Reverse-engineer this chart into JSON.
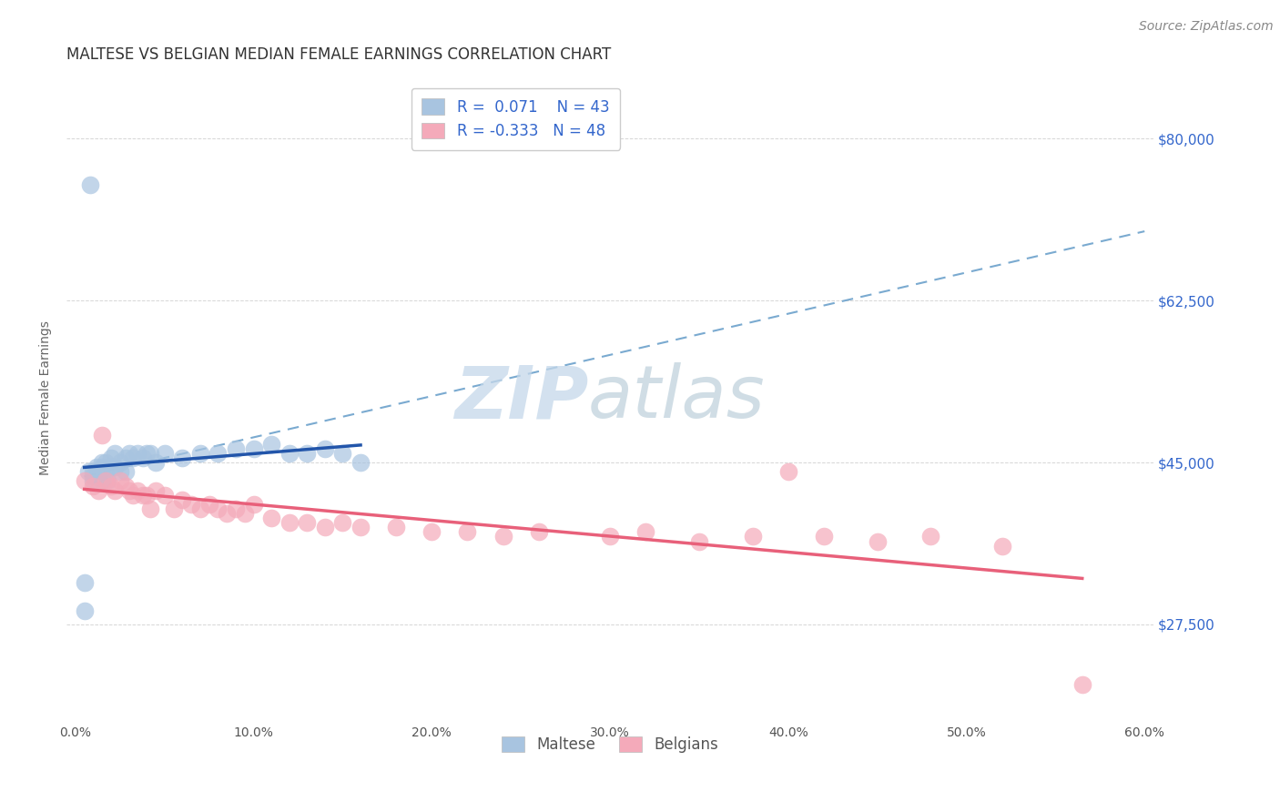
{
  "title": "MALTESE VS BELGIAN MEDIAN FEMALE EARNINGS CORRELATION CHART",
  "source": "Source: ZipAtlas.com",
  "ylabel": "Median Female Earnings",
  "xlim": [
    -0.005,
    0.605
  ],
  "ylim": [
    17000,
    87000
  ],
  "yticks": [
    27500,
    45000,
    62500,
    80000
  ],
  "ytick_labels": [
    "$27,500",
    "$45,000",
    "$62,500",
    "$80,000"
  ],
  "xticks": [
    0.0,
    0.1,
    0.2,
    0.3,
    0.4,
    0.5,
    0.6
  ],
  "xtick_labels": [
    "0.0%",
    "10.0%",
    "20.0%",
    "30.0%",
    "40.0%",
    "50.0%",
    "60.0%"
  ],
  "maltese_R": 0.071,
  "maltese_N": 43,
  "belgian_R": -0.333,
  "belgian_N": 48,
  "maltese_color": "#A8C4E0",
  "belgian_color": "#F4AABA",
  "maltese_trend_color": "#2255AA",
  "belgian_trend_color": "#E8607A",
  "dashed_line_color": "#7AAAD0",
  "background_color": "#FFFFFF",
  "grid_color": "#CCCCCC",
  "watermark_color": "#C8D8E8",
  "title_color": "#333333",
  "axis_label_color": "#666666",
  "tick_color": "#3366CC",
  "legend_text_color": "#3366CC",
  "maltese_x": [
    0.005,
    0.005,
    0.007,
    0.008,
    0.01,
    0.01,
    0.01,
    0.012,
    0.013,
    0.013,
    0.015,
    0.015,
    0.015,
    0.017,
    0.017,
    0.018,
    0.02,
    0.02,
    0.022,
    0.022,
    0.025,
    0.025,
    0.028,
    0.028,
    0.03,
    0.032,
    0.035,
    0.038,
    0.04,
    0.042,
    0.045,
    0.05,
    0.06,
    0.07,
    0.08,
    0.09,
    0.1,
    0.11,
    0.12,
    0.13,
    0.14,
    0.15,
    0.16
  ],
  "maltese_y": [
    29000,
    32000,
    44000,
    75000,
    44000,
    43500,
    43000,
    44500,
    44000,
    43500,
    45000,
    44500,
    43000,
    45000,
    44000,
    43000,
    45500,
    44500,
    46000,
    44500,
    45000,
    44000,
    45500,
    44000,
    46000,
    45500,
    46000,
    45500,
    46000,
    46000,
    45000,
    46000,
    45500,
    46000,
    46000,
    46500,
    46500,
    47000,
    46000,
    46000,
    46500,
    46000,
    45000
  ],
  "belgian_x": [
    0.005,
    0.01,
    0.013,
    0.015,
    0.017,
    0.02,
    0.022,
    0.025,
    0.028,
    0.03,
    0.032,
    0.035,
    0.038,
    0.04,
    0.042,
    0.045,
    0.05,
    0.055,
    0.06,
    0.065,
    0.07,
    0.075,
    0.08,
    0.085,
    0.09,
    0.095,
    0.1,
    0.11,
    0.12,
    0.13,
    0.14,
    0.15,
    0.16,
    0.18,
    0.2,
    0.22,
    0.24,
    0.26,
    0.3,
    0.32,
    0.35,
    0.38,
    0.4,
    0.42,
    0.45,
    0.48,
    0.52,
    0.565
  ],
  "belgian_y": [
    43000,
    42500,
    42000,
    48000,
    43000,
    42500,
    42000,
    43000,
    42500,
    42000,
    41500,
    42000,
    41500,
    41500,
    40000,
    42000,
    41500,
    40000,
    41000,
    40500,
    40000,
    40500,
    40000,
    39500,
    40000,
    39500,
    40500,
    39000,
    38500,
    38500,
    38000,
    38500,
    38000,
    38000,
    37500,
    37500,
    37000,
    37500,
    37000,
    37500,
    36500,
    37000,
    44000,
    37000,
    36500,
    37000,
    36000,
    21000
  ],
  "title_fontsize": 12,
  "axis_label_fontsize": 10,
  "tick_fontsize": 10,
  "legend_fontsize": 12,
  "source_fontsize": 10,
  "maltese_trend_xrange": [
    0.005,
    0.16
  ],
  "dashed_xrange": [
    0.005,
    0.6
  ],
  "dashed_ystart": 43500,
  "dashed_yend": 70000
}
